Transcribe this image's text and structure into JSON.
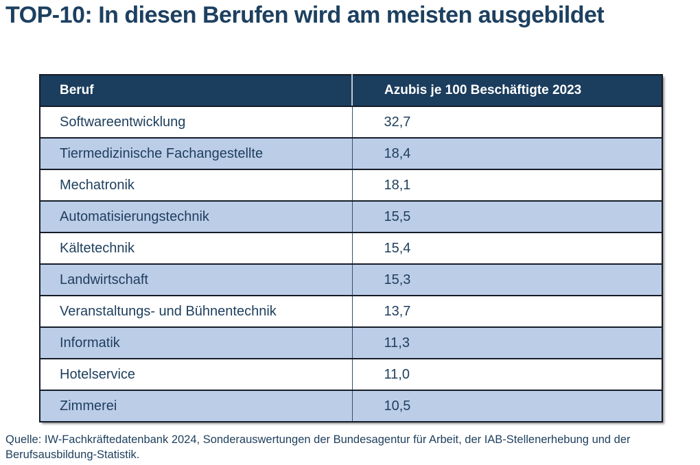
{
  "page": {
    "title": "TOP-10: In diesen Berufen wird am meisten ausgebildet",
    "source": "Quelle: IW-Fachkräftedatenbank 2024, Sonderauswertungen der Bundesagentur für Arbeit, der IAB-Stellenerhebung und der Berufsausbildung-Statistik."
  },
  "table": {
    "columns": [
      {
        "label": "Beruf"
      },
      {
        "label": "Azubis je 100 Beschäftigte 2023"
      }
    ],
    "rows": [
      {
        "beruf": "Softwareentwicklung",
        "value": "32,7"
      },
      {
        "beruf": "Tiermedizinische Fachangestellte",
        "value": "18,4"
      },
      {
        "beruf": "Mechatronik",
        "value": "18,1"
      },
      {
        "beruf": "Automatisierungstechnik",
        "value": "15,5"
      },
      {
        "beruf": "Kältetechnik",
        "value": "15,4"
      },
      {
        "beruf": "Landwirtschaft",
        "value": "15,3"
      },
      {
        "beruf": "Veranstaltungs- und Bühnentechnik",
        "value": "13,7"
      },
      {
        "beruf": "Informatik",
        "value": "11,3"
      },
      {
        "beruf": "Hotelservice",
        "value": "11,0"
      },
      {
        "beruf": "Zimmerei",
        "value": "10,5"
      }
    ]
  },
  "colors": {
    "title_text": "#1D4060",
    "header_bg": "#1B3D5E",
    "header_text": "#FFFFFF",
    "row_alt_bg": "#BCCDE8",
    "row_bg": "#FFFFFF",
    "body_text": "#1D3E5C",
    "border_dark": "#141B26"
  },
  "chart_data": {
    "type": "table",
    "title": "TOP-10: In diesen Berufen wird am meisten ausgebildet",
    "columns": [
      "Beruf",
      "Azubis je 100 Beschäftigte 2023"
    ],
    "categories": [
      "Softwareentwicklung",
      "Tiermedizinische Fachangestellte",
      "Mechatronik",
      "Automatisierungstechnik",
      "Kältetechnik",
      "Landwirtschaft",
      "Veranstaltungs- und Bühnentechnik",
      "Informatik",
      "Hotelservice",
      "Zimmerei"
    ],
    "values": [
      32.7,
      18.4,
      18.1,
      15.5,
      15.4,
      15.3,
      13.7,
      11.3,
      11.0,
      10.5
    ],
    "value_unit": "Azubis je 100 Beschäftigte",
    "year": "2023",
    "layout": "zebra-striped two-column table, dark navy header",
    "source": "Quelle: IW-Fachkräftedatenbank 2024, Sonderauswertungen der Bundesagentur für Arbeit, der IAB-Stellenerhebung und der Berufsausbildung-Statistik."
  }
}
